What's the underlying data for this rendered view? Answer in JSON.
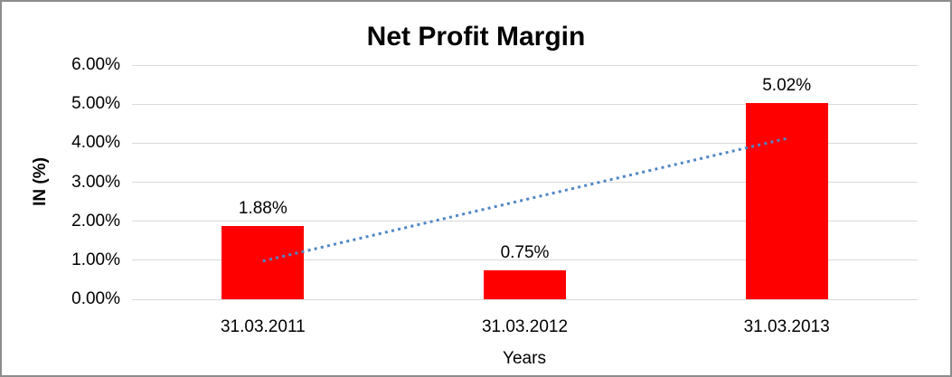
{
  "chart_data": {
    "type": "bar",
    "title": "Net Profit Margin",
    "categories": [
      "31.03.2011",
      "31.03.2012",
      "31.03.2013"
    ],
    "values": [
      1.88,
      0.75,
      5.02
    ],
    "data_labels": [
      "1.88%",
      "0.75%",
      "5.02%"
    ],
    "xlabel": "Years",
    "ylabel": "IN (%)",
    "ylim": [
      0,
      6
    ],
    "yticks": [
      "0.00%",
      "1.00%",
      "2.00%",
      "3.00%",
      "4.00%",
      "5.00%",
      "6.00%"
    ],
    "grid": true,
    "legend": "none",
    "bar_color": "#ff0000",
    "gridline_color": "#d9d9d9",
    "text_color": "#000000",
    "trendline": {
      "style": "dotted",
      "color": "#4f86c6",
      "start_value_pct": 0.98,
      "end_value_pct": 4.12
    }
  }
}
